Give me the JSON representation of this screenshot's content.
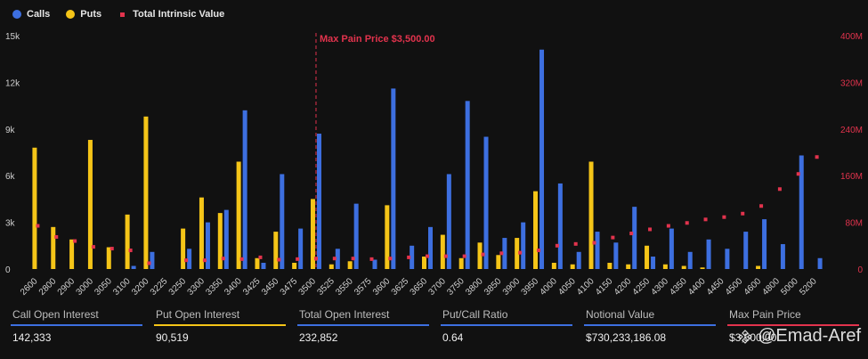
{
  "legend": {
    "calls": "Calls",
    "puts": "Puts",
    "intrinsic": "Total Intrinsic Value"
  },
  "colors": {
    "calls": "#3d6fe0",
    "puts": "#f5c518",
    "intrinsic": "#e2334d",
    "background": "#111111"
  },
  "chart_data": {
    "type": "bar",
    "title": "",
    "categories": [
      "2600",
      "2800",
      "2900",
      "3000",
      "3050",
      "3100",
      "3200",
      "3225",
      "3250",
      "3300",
      "3350",
      "3400",
      "3425",
      "3450",
      "3475",
      "3500",
      "3525",
      "3550",
      "3575",
      "3600",
      "3625",
      "3650",
      "3700",
      "3750",
      "3800",
      "3850",
      "3900",
      "3950",
      "4000",
      "4050",
      "4100",
      "4150",
      "4200",
      "4250",
      "4300",
      "4350",
      "4400",
      "4450",
      "4500",
      "4600",
      "4800",
      "5000",
      "5200"
    ],
    "series": [
      {
        "name": "Calls",
        "axis": "left",
        "values": [
          0,
          0,
          0,
          0,
          0,
          200,
          1100,
          0,
          1300,
          3000,
          3800,
          10200,
          400,
          6100,
          2600,
          8700,
          1300,
          4200,
          600,
          11600,
          1500,
          2700,
          6100,
          10800,
          8500,
          2000,
          3000,
          14100,
          5500,
          1100,
          2400,
          1700,
          4000,
          800,
          2600,
          1100,
          1900,
          1300,
          2400,
          3200,
          1600,
          7300,
          700
        ]
      },
      {
        "name": "Puts",
        "axis": "left",
        "values": [
          7800,
          2700,
          1900,
          8300,
          1400,
          3500,
          9800,
          0,
          2600,
          4600,
          3600,
          6900,
          700,
          2400,
          400,
          4500,
          300,
          500,
          0,
          4100,
          0,
          800,
          2200,
          700,
          1700,
          900,
          2000,
          5000,
          400,
          300,
          6900,
          400,
          300,
          1500,
          300,
          200,
          100,
          0,
          0,
          200,
          0,
          0,
          0
        ]
      },
      {
        "name": "Total Intrinsic Value",
        "axis": "right",
        "values": [
          74,
          55,
          48,
          38,
          35,
          32,
          10,
          0,
          15,
          15,
          18,
          17,
          20,
          16,
          17,
          18,
          18,
          18,
          17,
          18,
          20,
          22,
          22,
          22,
          25,
          27,
          28,
          32,
          40,
          43,
          45,
          54,
          61,
          68,
          74,
          79,
          85,
          89,
          95,
          108,
          137,
          163,
          192
        ]
      }
    ],
    "y_left": {
      "min": 0,
      "max": 15000,
      "ticks": [
        "0",
        "3k",
        "6k",
        "9k",
        "12k",
        "15k"
      ],
      "tick_values": [
        0,
        3000,
        6000,
        9000,
        12000,
        15000
      ]
    },
    "y_right": {
      "min": 0,
      "max": 400,
      "unit": "M",
      "ticks": [
        "0",
        "80M",
        "160M",
        "240M",
        "320M",
        "400M"
      ],
      "tick_values": [
        0,
        80,
        160,
        240,
        320,
        400
      ]
    },
    "max_pain": {
      "category": "3500",
      "label": "Max Pain Price $3,500.00"
    },
    "grid": false,
    "legend_position": "top-left"
  },
  "stats": [
    {
      "label": "Call Open Interest",
      "value": "142,333",
      "color": "#3d6fe0"
    },
    {
      "label": "Put Open Interest",
      "value": "90,519",
      "color": "#f5c518"
    },
    {
      "label": "Total Open Interest",
      "value": "232,852",
      "color": "#3d6fe0"
    },
    {
      "label": "Put/Call Ratio",
      "value": "0.64",
      "color": "#3d6fe0"
    },
    {
      "label": "Notional Value",
      "value": "$730,233,186.08",
      "color": "#3d6fe0"
    },
    {
      "label": "Max Pain Price",
      "value": "$3,500.00",
      "color": "#e2334d"
    }
  ],
  "watermark": {
    "text": "@Emad-Aref"
  }
}
